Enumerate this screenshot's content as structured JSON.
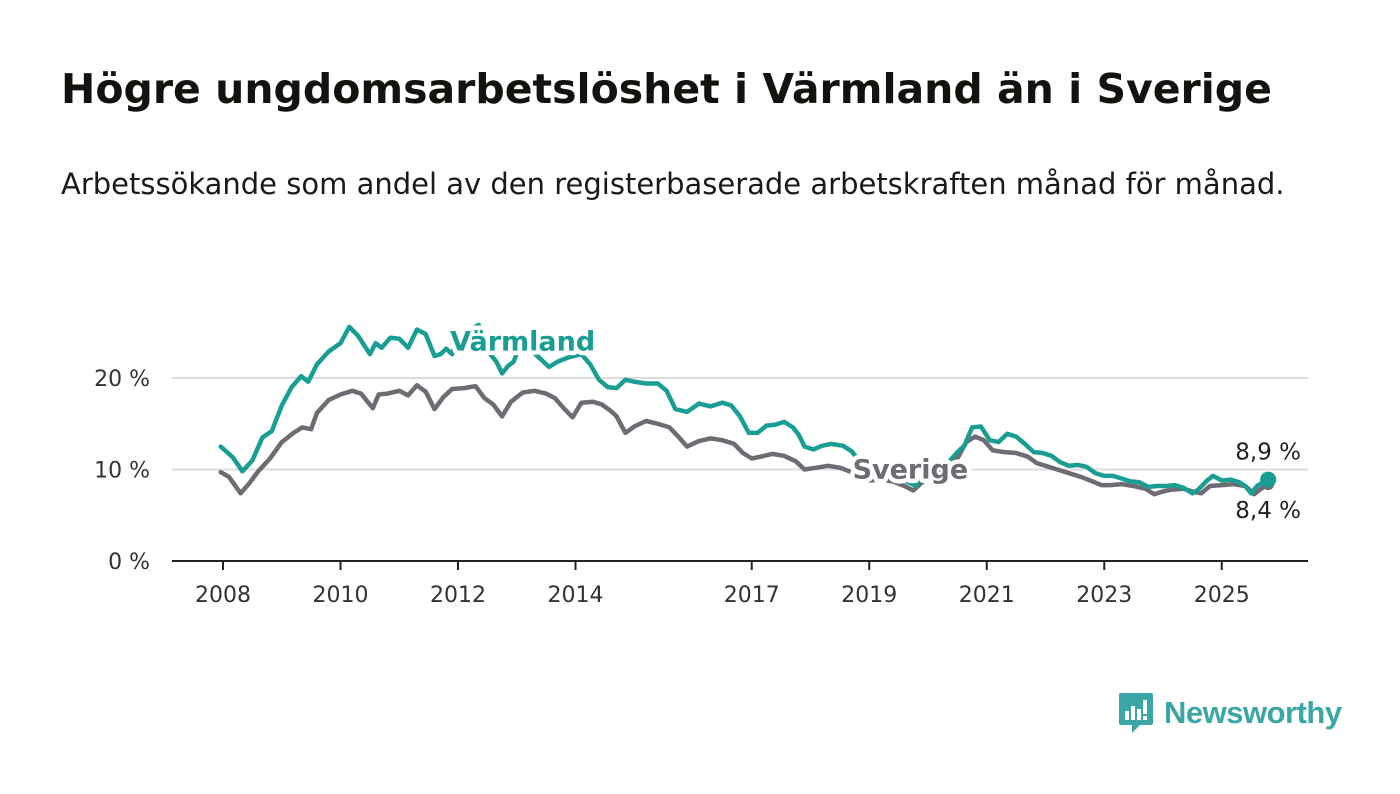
{
  "title": "Högre ungdomsarbetslöshet i Värmland än i Sverige",
  "subtitle": "Arbetssökande som andel av den registerbaserade arbetskraften månad för månad.",
  "brand": {
    "name": "Newsworthy",
    "color": "#3aa6a6"
  },
  "chart_data": {
    "type": "line",
    "title": "",
    "xlabel": "",
    "ylabel": "",
    "ylim": [
      0,
      27
    ],
    "xlim": [
      2007.2,
      2026.5
    ],
    "grid": true,
    "y_ticks": [
      {
        "value": 0,
        "label": "0 %"
      },
      {
        "value": 10,
        "label": "10 %"
      },
      {
        "value": 20,
        "label": "20 %"
      }
    ],
    "x_ticks": [
      {
        "value": 2008,
        "label": "2008"
      },
      {
        "value": 2010,
        "label": "2010"
      },
      {
        "value": 2012,
        "label": "2012"
      },
      {
        "value": 2014,
        "label": "2014"
      },
      {
        "value": 2017,
        "label": "2017"
      },
      {
        "value": 2019,
        "label": "2019"
      },
      {
        "value": 2021,
        "label": "2021"
      },
      {
        "value": 2023,
        "label": "2023"
      },
      {
        "value": 2025,
        "label": "2025"
      }
    ],
    "series": [
      {
        "name": "Värmland",
        "color": "#1a9e93",
        "label_anchor": [
          2013.1,
          23.0
        ],
        "end_label": "8,9 %",
        "points": [
          [
            2007.96,
            12.5
          ],
          [
            2008.17,
            11.3
          ],
          [
            2008.33,
            9.8
          ],
          [
            2008.5,
            11.0
          ],
          [
            2008.67,
            13.5
          ],
          [
            2008.83,
            14.2
          ],
          [
            2009.0,
            17.0
          ],
          [
            2009.17,
            19.0
          ],
          [
            2009.33,
            20.2
          ],
          [
            2009.45,
            19.6
          ],
          [
            2009.6,
            21.5
          ],
          [
            2009.8,
            22.9
          ],
          [
            2010.0,
            23.8
          ],
          [
            2010.15,
            25.6
          ],
          [
            2010.3,
            24.6
          ],
          [
            2010.5,
            22.6
          ],
          [
            2010.6,
            23.8
          ],
          [
            2010.7,
            23.3
          ],
          [
            2010.85,
            24.4
          ],
          [
            2011.0,
            24.3
          ],
          [
            2011.15,
            23.3
          ],
          [
            2011.3,
            25.3
          ],
          [
            2011.45,
            24.8
          ],
          [
            2011.6,
            22.4
          ],
          [
            2011.7,
            22.6
          ],
          [
            2011.8,
            23.2
          ],
          [
            2011.9,
            22.6
          ],
          [
            2012.0,
            24.5
          ],
          [
            2012.2,
            25.2
          ],
          [
            2012.35,
            25.8
          ],
          [
            2012.45,
            23.5
          ],
          [
            2012.55,
            22.6
          ],
          [
            2012.65,
            21.8
          ],
          [
            2012.75,
            20.5
          ],
          [
            2012.85,
            21.3
          ],
          [
            2012.95,
            21.8
          ],
          [
            2013.05,
            23.6
          ],
          [
            2013.3,
            22.7
          ],
          [
            2013.55,
            21.2
          ],
          [
            2013.7,
            21.8
          ],
          [
            2013.9,
            22.3
          ],
          [
            2014.1,
            22.6
          ],
          [
            2014.25,
            21.5
          ],
          [
            2014.4,
            19.8
          ],
          [
            2014.55,
            19.0
          ],
          [
            2014.7,
            18.9
          ],
          [
            2014.85,
            19.8
          ],
          [
            2015.0,
            19.6
          ],
          [
            2015.2,
            19.4
          ],
          [
            2015.4,
            19.4
          ],
          [
            2015.55,
            18.6
          ],
          [
            2015.7,
            16.6
          ],
          [
            2015.9,
            16.3
          ],
          [
            2016.1,
            17.2
          ],
          [
            2016.3,
            16.9
          ],
          [
            2016.5,
            17.3
          ],
          [
            2016.65,
            17.0
          ],
          [
            2016.8,
            15.8
          ],
          [
            2016.95,
            14.0
          ],
          [
            2017.1,
            14.0
          ],
          [
            2017.25,
            14.8
          ],
          [
            2017.4,
            14.9
          ],
          [
            2017.55,
            15.2
          ],
          [
            2017.7,
            14.6
          ],
          [
            2017.8,
            13.8
          ],
          [
            2017.9,
            12.5
          ],
          [
            2018.05,
            12.2
          ],
          [
            2018.2,
            12.6
          ],
          [
            2018.35,
            12.8
          ],
          [
            2018.55,
            12.6
          ],
          [
            2018.7,
            12.0
          ],
          [
            2018.85,
            10.8
          ],
          [
            2019.0,
            9.0
          ],
          [
            2019.15,
            9.2
          ],
          [
            2019.3,
            9.6
          ],
          [
            2019.45,
            9.2
          ],
          [
            2019.6,
            8.8
          ],
          [
            2019.8,
            8.2
          ],
          [
            2019.95,
            9.8
          ],
          [
            2020.15,
            10.4
          ],
          [
            2020.35,
            10.8
          ],
          [
            2020.5,
            11.9
          ],
          [
            2020.62,
            12.6
          ],
          [
            2020.75,
            14.6
          ],
          [
            2020.9,
            14.7
          ],
          [
            2021.05,
            13.2
          ],
          [
            2021.2,
            13.0
          ],
          [
            2021.35,
            13.9
          ],
          [
            2021.5,
            13.6
          ],
          [
            2021.65,
            12.8
          ],
          [
            2021.8,
            11.9
          ],
          [
            2021.95,
            11.8
          ],
          [
            2022.1,
            11.5
          ],
          [
            2022.25,
            10.8
          ],
          [
            2022.4,
            10.4
          ],
          [
            2022.55,
            10.5
          ],
          [
            2022.7,
            10.3
          ],
          [
            2022.85,
            9.6
          ],
          [
            2023.0,
            9.3
          ],
          [
            2023.15,
            9.3
          ],
          [
            2023.3,
            9.0
          ],
          [
            2023.45,
            8.7
          ],
          [
            2023.6,
            8.6
          ],
          [
            2023.75,
            8.1
          ],
          [
            2023.9,
            8.2
          ],
          [
            2024.05,
            8.2
          ],
          [
            2024.2,
            8.3
          ],
          [
            2024.35,
            8.0
          ],
          [
            2024.5,
            7.4
          ],
          [
            2024.6,
            7.8
          ],
          [
            2024.75,
            8.8
          ],
          [
            2024.85,
            9.3
          ],
          [
            2025.0,
            8.8
          ],
          [
            2025.15,
            8.9
          ],
          [
            2025.3,
            8.6
          ],
          [
            2025.4,
            8.2
          ],
          [
            2025.5,
            7.4
          ],
          [
            2025.6,
            8.2
          ],
          [
            2025.7,
            8.6
          ],
          [
            2025.79,
            8.9
          ]
        ]
      },
      {
        "name": "Sverige",
        "color": "#6e6b73",
        "label_anchor": [
          2019.7,
          9.0
        ],
        "end_label": "8,4 %",
        "points": [
          [
            2007.96,
            9.7
          ],
          [
            2008.1,
            9.2
          ],
          [
            2008.3,
            7.4
          ],
          [
            2008.45,
            8.5
          ],
          [
            2008.6,
            9.8
          ],
          [
            2008.8,
            11.2
          ],
          [
            2009.0,
            13.0
          ],
          [
            2009.2,
            14.0
          ],
          [
            2009.35,
            14.6
          ],
          [
            2009.5,
            14.4
          ],
          [
            2009.6,
            16.2
          ],
          [
            2009.8,
            17.6
          ],
          [
            2010.0,
            18.2
          ],
          [
            2010.2,
            18.6
          ],
          [
            2010.35,
            18.3
          ],
          [
            2010.55,
            16.7
          ],
          [
            2010.65,
            18.2
          ],
          [
            2010.8,
            18.3
          ],
          [
            2011.0,
            18.6
          ],
          [
            2011.15,
            18.1
          ],
          [
            2011.3,
            19.2
          ],
          [
            2011.45,
            18.5
          ],
          [
            2011.6,
            16.6
          ],
          [
            2011.75,
            17.9
          ],
          [
            2011.9,
            18.8
          ],
          [
            2012.1,
            18.9
          ],
          [
            2012.3,
            19.1
          ],
          [
            2012.45,
            17.8
          ],
          [
            2012.6,
            17.1
          ],
          [
            2012.75,
            15.8
          ],
          [
            2012.9,
            17.4
          ],
          [
            2013.1,
            18.4
          ],
          [
            2013.3,
            18.6
          ],
          [
            2013.5,
            18.3
          ],
          [
            2013.65,
            17.8
          ],
          [
            2013.8,
            16.7
          ],
          [
            2013.95,
            15.7
          ],
          [
            2014.1,
            17.3
          ],
          [
            2014.3,
            17.4
          ],
          [
            2014.45,
            17.1
          ],
          [
            2014.6,
            16.4
          ],
          [
            2014.7,
            15.8
          ],
          [
            2014.85,
            14.0
          ],
          [
            2015.0,
            14.7
          ],
          [
            2015.2,
            15.3
          ],
          [
            2015.4,
            15.0
          ],
          [
            2015.6,
            14.6
          ],
          [
            2015.75,
            13.6
          ],
          [
            2015.9,
            12.5
          ],
          [
            2016.1,
            13.1
          ],
          [
            2016.3,
            13.4
          ],
          [
            2016.5,
            13.2
          ],
          [
            2016.7,
            12.8
          ],
          [
            2016.85,
            11.8
          ],
          [
            2017.0,
            11.2
          ],
          [
            2017.15,
            11.4
          ],
          [
            2017.35,
            11.7
          ],
          [
            2017.55,
            11.5
          ],
          [
            2017.75,
            10.9
          ],
          [
            2017.9,
            10.0
          ],
          [
            2018.1,
            10.2
          ],
          [
            2018.3,
            10.4
          ],
          [
            2018.5,
            10.2
          ],
          [
            2018.7,
            9.7
          ],
          [
            2018.85,
            9.2
          ],
          [
            2019.0,
            8.8
          ],
          [
            2019.2,
            8.9
          ],
          [
            2019.4,
            8.7
          ],
          [
            2019.6,
            8.2
          ],
          [
            2019.75,
            7.7
          ],
          [
            2019.9,
            8.6
          ],
          [
            2020.1,
            9.3
          ],
          [
            2020.3,
            10.0
          ],
          [
            2020.5,
            11.2
          ],
          [
            2020.65,
            13.0
          ],
          [
            2020.8,
            13.6
          ],
          [
            2020.95,
            13.2
          ],
          [
            2021.1,
            12.1
          ],
          [
            2021.3,
            11.9
          ],
          [
            2021.5,
            11.8
          ],
          [
            2021.7,
            11.4
          ],
          [
            2021.85,
            10.7
          ],
          [
            2022.0,
            10.4
          ],
          [
            2022.2,
            10.0
          ],
          [
            2022.4,
            9.6
          ],
          [
            2022.6,
            9.2
          ],
          [
            2022.8,
            8.7
          ],
          [
            2022.95,
            8.3
          ],
          [
            2023.1,
            8.3
          ],
          [
            2023.3,
            8.4
          ],
          [
            2023.5,
            8.2
          ],
          [
            2023.7,
            7.9
          ],
          [
            2023.85,
            7.3
          ],
          [
            2024.0,
            7.6
          ],
          [
            2024.15,
            7.8
          ],
          [
            2024.35,
            7.9
          ],
          [
            2024.5,
            7.6
          ],
          [
            2024.65,
            7.4
          ],
          [
            2024.8,
            8.2
          ],
          [
            2025.0,
            8.3
          ],
          [
            2025.2,
            8.4
          ],
          [
            2025.4,
            8.2
          ],
          [
            2025.55,
            7.3
          ],
          [
            2025.65,
            7.8
          ],
          [
            2025.79,
            8.4
          ]
        ]
      }
    ]
  }
}
